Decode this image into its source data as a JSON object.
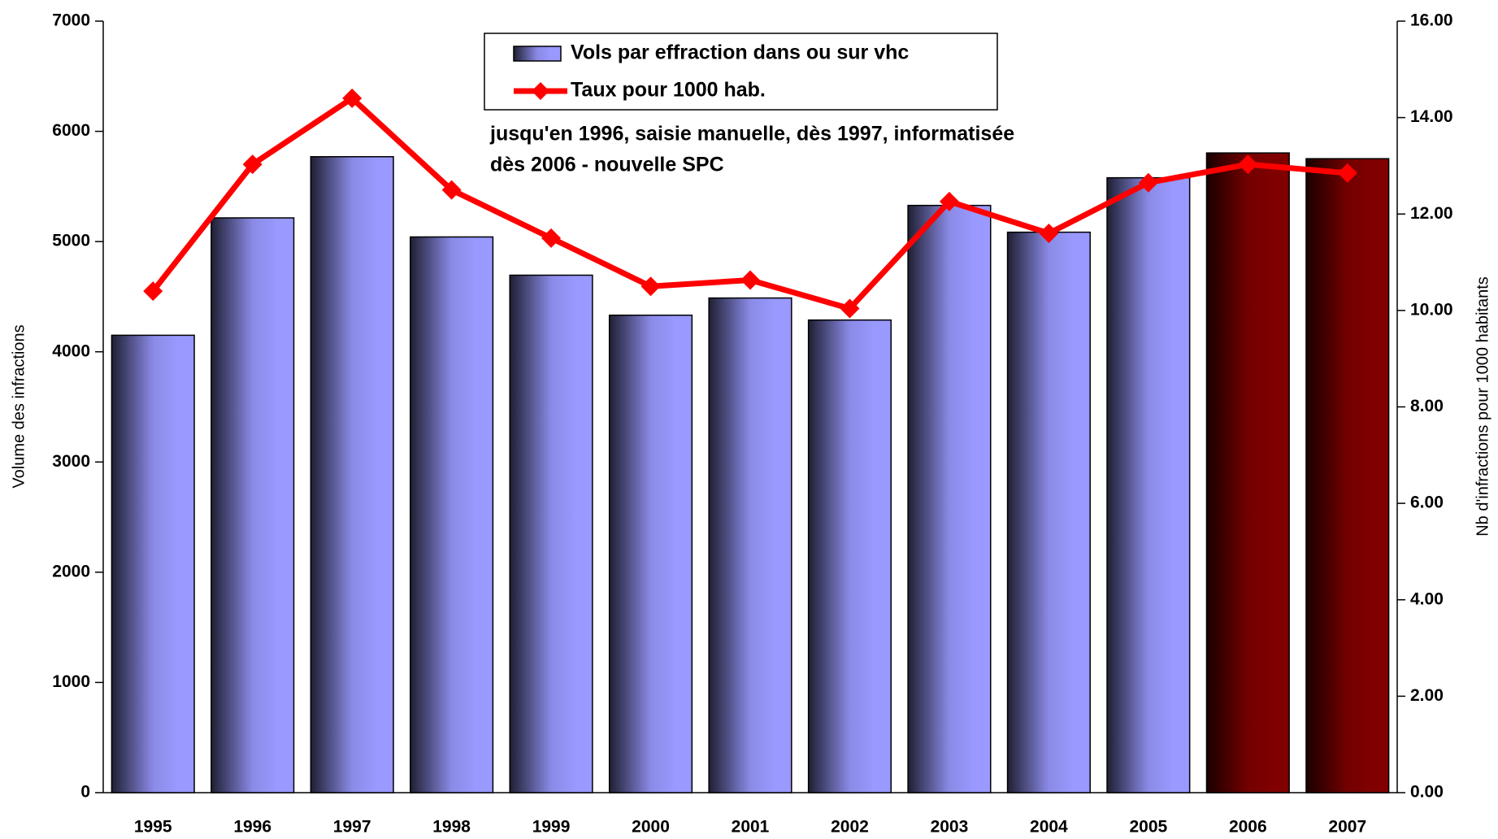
{
  "chart_data": {
    "type": "bar-line",
    "categories": [
      "1995",
      "1996",
      "1997",
      "1998",
      "1999",
      "2000",
      "2001",
      "2002",
      "2003",
      "2004",
      "2005",
      "2006",
      "2007"
    ],
    "series": [
      {
        "name": "Vols par effraction dans ou sur vhc",
        "type": "bar",
        "colors": [
          "#9999ff",
          "#9999ff",
          "#9999ff",
          "#9999ff",
          "#9999ff",
          "#9999ff",
          "#9999ff",
          "#9999ff",
          "#9999ff",
          "#9999ff",
          "#9999ff",
          "#800000",
          "#800000"
        ],
        "values": [
          4150,
          5215,
          5770,
          5042,
          4695,
          4332,
          4488,
          4288,
          5328,
          5085,
          5579,
          5804,
          5752
        ]
      },
      {
        "name": "Taux pour 1000 hab.",
        "type": "line",
        "color": "#ff0000",
        "axis": "y2",
        "values": [
          10.4,
          13.03,
          14.4,
          12.5,
          11.5,
          10.5,
          10.63,
          10.04,
          12.26,
          11.6,
          12.65,
          13.03,
          12.85
        ]
      }
    ],
    "ylabel": "Volume des infractions",
    "y2label": "Nb d'infractions pour 1000 habitants",
    "ylim": [
      0,
      7000
    ],
    "yticks": [
      0,
      1000,
      2000,
      3000,
      4000,
      5000,
      6000,
      7000
    ],
    "y2lim": [
      0,
      16
    ],
    "y2ticks": [
      {
        "value": 0,
        "label": "0.00"
      },
      {
        "value": 2,
        "label": "2.00"
      },
      {
        "value": 4,
        "label": "4.00"
      },
      {
        "value": 6,
        "label": "6.00"
      },
      {
        "value": 8,
        "label": "8.00"
      },
      {
        "value": 10,
        "label": "10.00"
      },
      {
        "value": 12,
        "label": "12.00"
      },
      {
        "value": 14,
        "label": "14.00"
      },
      {
        "value": 16,
        "label": "16.00"
      }
    ],
    "annotations": [
      {
        "text": "jusqu'en 1996, saisie manuelle, dès 1997, informatisée",
        "color": "#003366"
      },
      {
        "text": "dès 2006 - nouvelle SPC",
        "color": "#800000"
      }
    ]
  }
}
